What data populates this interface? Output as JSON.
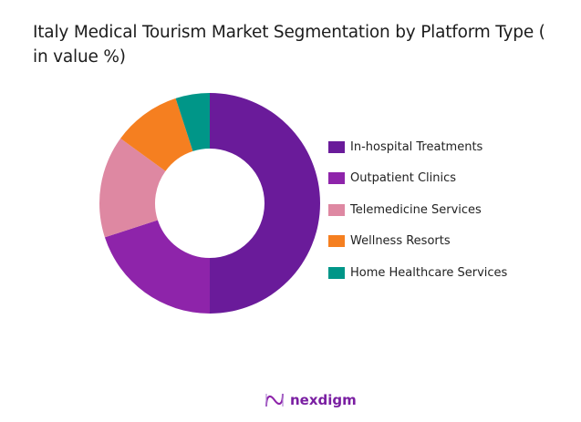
{
  "chart_data": {
    "type": "pie",
    "variant": "donut",
    "title": "Italy Medical Tourism Market Segmentation by Platform Type ( in value %)",
    "categories": [
      "In-hospital Treatments",
      "Outpatient Clinics",
      "Telemedicine Services",
      "Wellness Resorts",
      "Home Healthcare Services"
    ],
    "values": [
      50,
      20,
      15,
      10,
      5
    ],
    "colors": [
      "#6a1b9a",
      "#8e24aa",
      "#de88a2",
      "#f57f20",
      "#009688"
    ],
    "legend_position": "right"
  },
  "title": "Italy Medical Tourism Market Segmentation by Platform Type ( in value %)",
  "legend": [
    {
      "label": "In-hospital Treatments",
      "color": "#6a1b9a"
    },
    {
      "label": "Outpatient Clinics",
      "color": "#8e24aa"
    },
    {
      "label": "Telemedicine Services",
      "color": "#de88a2"
    },
    {
      "label": "Wellness Resorts",
      "color": "#f57f20"
    },
    {
      "label": "Home Healthcare Services",
      "color": "#009688"
    }
  ],
  "logo": {
    "text": "nexdigm"
  }
}
